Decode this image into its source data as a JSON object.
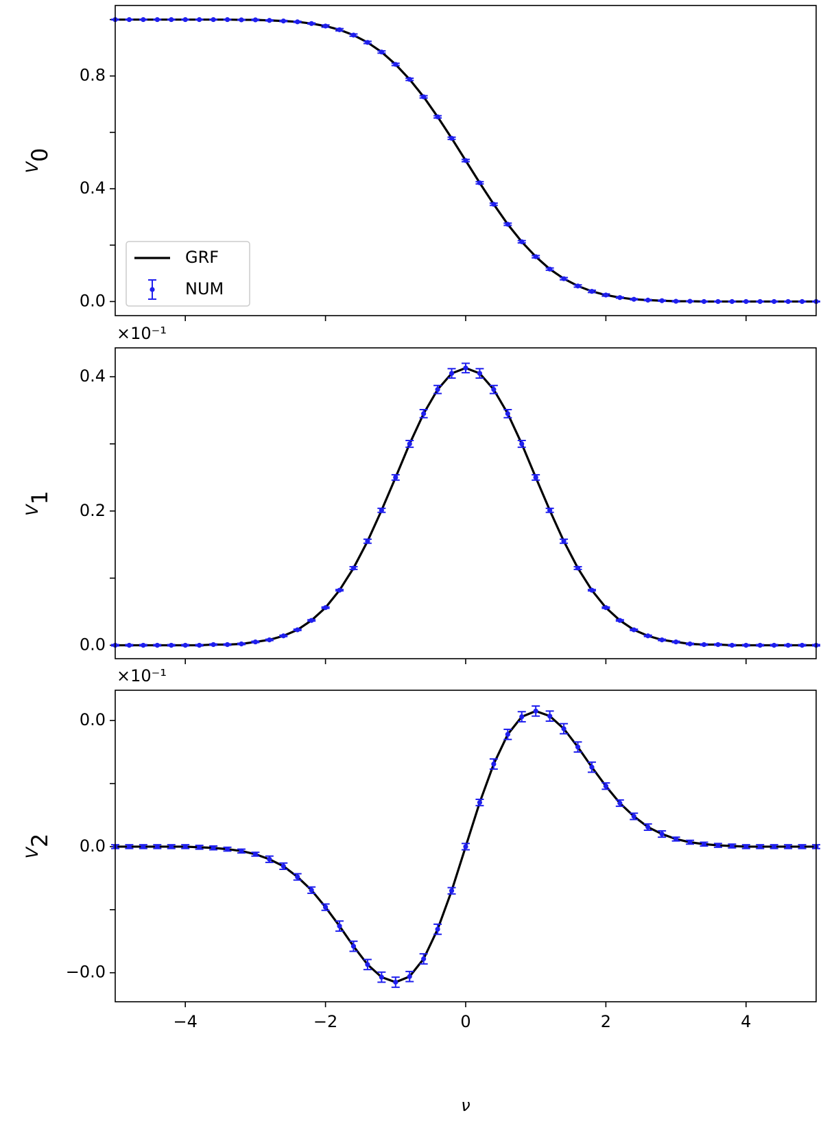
{
  "chart_data": [
    {
      "type": "errorbar",
      "ylabel": "V",
      "ylabel_sub": "0",
      "xlim": [
        -5,
        5
      ],
      "xticks": [
        -4,
        -2,
        0,
        2,
        4
      ],
      "xticklabels": false,
      "ylim": [
        -0.05,
        1.05
      ],
      "yticks": [
        {
          "value": 0,
          "label": "0.0"
        },
        0.4,
        0.8
      ],
      "yminor": [
        0.2,
        0.6,
        1.0
      ],
      "legend": "lower left",
      "x": [
        -5,
        -4.8,
        -4.6,
        -4.4,
        -4.2,
        -4,
        -3.8,
        -3.6,
        -3.4,
        -3.2,
        -3,
        -2.8,
        -2.6,
        -2.4,
        -2.2,
        -2,
        -1.8,
        -1.6,
        -1.4,
        -1.2,
        -1,
        -0.8,
        -0.6,
        -0.4,
        -0.2,
        0,
        0.2,
        0.4,
        0.6,
        0.8,
        1,
        1.2,
        1.4,
        1.6,
        1.8,
        2,
        2.2,
        2.4,
        2.6,
        2.8,
        3,
        3.2,
        3.4,
        3.6,
        3.8,
        4,
        4.2,
        4.4,
        4.6,
        4.8,
        5
      ],
      "series": [
        {
          "name": "GRF",
          "color": "#000000",
          "values": [
            1,
            1,
            1,
            1,
            1,
            1,
            1,
            1,
            1,
            0.999,
            0.999,
            0.997,
            0.995,
            0.992,
            0.986,
            0.977,
            0.964,
            0.945,
            0.919,
            0.885,
            0.841,
            0.788,
            0.726,
            0.655,
            0.579,
            0.5,
            0.421,
            0.345,
            0.274,
            0.212,
            0.159,
            0.115,
            0.081,
            0.055,
            0.036,
            0.023,
            0.014,
            0.008,
            0.005,
            0.003,
            0.001,
            0.001,
            0,
            0,
            0,
            0,
            0,
            0,
            0,
            0,
            0
          ]
        },
        {
          "name": "NUM",
          "color": "#1f1fee",
          "values": [
            1,
            1,
            1,
            1,
            1,
            1,
            1,
            1,
            1,
            0.999,
            0.999,
            0.997,
            0.995,
            0.992,
            0.986,
            0.977,
            0.964,
            0.945,
            0.919,
            0.885,
            0.841,
            0.788,
            0.726,
            0.655,
            0.579,
            0.5,
            0.421,
            0.345,
            0.274,
            0.212,
            0.159,
            0.115,
            0.081,
            0.055,
            0.036,
            0.023,
            0.014,
            0.008,
            0.005,
            0.003,
            0.001,
            0.001,
            0,
            0,
            0,
            0,
            0,
            0,
            0,
            0,
            0
          ],
          "errors": [
            0.001,
            0.001,
            0.001,
            0.001,
            0.001,
            0.001,
            0.001,
            0.001,
            0.001,
            0.001,
            0.002,
            0.002,
            0.002,
            0.002,
            0.002,
            0.004,
            0.004,
            0.004,
            0.004,
            0.004,
            0.004,
            0.004,
            0.004,
            0.004,
            0.004,
            0.004,
            0.004,
            0.004,
            0.004,
            0.004,
            0.004,
            0.004,
            0.004,
            0.004,
            0.004,
            0.004,
            0.002,
            0.002,
            0.002,
            0.002,
            0.002,
            0.001,
            0.001,
            0.001,
            0.001,
            0.001,
            0.001,
            0.001,
            0.001,
            0.001,
            0.001
          ]
        }
      ]
    },
    {
      "type": "errorbar",
      "ylabel": "V",
      "ylabel_sub": "1",
      "offset_text": "×10⁻¹",
      "xlim": [
        -5,
        5
      ],
      "xticks": [
        -4,
        -2,
        0,
        2,
        4
      ],
      "xticklabels": false,
      "ylim": [
        -0.02,
        0.443
      ],
      "yticks": [
        {
          "value": 0,
          "label": "0.0"
        },
        0.2,
        0.4
      ],
      "yminor": [
        0.1,
        0.3
      ],
      "x": [
        -5,
        -4.8,
        -4.6,
        -4.4,
        -4.2,
        -4,
        -3.8,
        -3.6,
        -3.4,
        -3.2,
        -3,
        -2.8,
        -2.6,
        -2.4,
        -2.2,
        -2,
        -1.8,
        -1.6,
        -1.4,
        -1.2,
        -1,
        -0.8,
        -0.6,
        -0.4,
        -0.2,
        0,
        0.2,
        0.4,
        0.6,
        0.8,
        1,
        1.2,
        1.4,
        1.6,
        1.8,
        2,
        2.2,
        2.4,
        2.6,
        2.8,
        3,
        3.2,
        3.4,
        3.6,
        3.8,
        4,
        4.2,
        4.4,
        4.6,
        4.8,
        5
      ],
      "series": [
        {
          "name": "GRF",
          "color": "#000000",
          "values": [
            0,
            0,
            0,
            0,
            0,
            0,
            0,
            0.001,
            0.001,
            0.002,
            0.005,
            0.008,
            0.014,
            0.023,
            0.037,
            0.056,
            0.082,
            0.115,
            0.155,
            0.201,
            0.25,
            0.3,
            0.345,
            0.381,
            0.405,
            0.413,
            0.405,
            0.381,
            0.345,
            0.3,
            0.25,
            0.201,
            0.155,
            0.115,
            0.082,
            0.056,
            0.037,
            0.023,
            0.014,
            0.008,
            0.005,
            0.002,
            0.001,
            0.001,
            0,
            0,
            0,
            0,
            0,
            0,
            0
          ]
        },
        {
          "name": "NUM",
          "color": "#1f1fee",
          "values": [
            0,
            0,
            0,
            0,
            0,
            0,
            0,
            0.001,
            0.001,
            0.002,
            0.005,
            0.008,
            0.014,
            0.023,
            0.037,
            0.056,
            0.082,
            0.115,
            0.155,
            0.201,
            0.25,
            0.3,
            0.345,
            0.381,
            0.405,
            0.413,
            0.405,
            0.381,
            0.345,
            0.3,
            0.25,
            0.201,
            0.155,
            0.115,
            0.082,
            0.056,
            0.037,
            0.023,
            0.014,
            0.008,
            0.005,
            0.002,
            0.001,
            0.001,
            0,
            0,
            0,
            0,
            0,
            0,
            0
          ],
          "errors": [
            0.001,
            0.001,
            0.001,
            0.001,
            0.001,
            0.001,
            0.001,
            0.001,
            0.001,
            0.001,
            0.001,
            0.001,
            0.001,
            0.001,
            0.001,
            0.001,
            0.001,
            0.002,
            0.003,
            0.003,
            0.004,
            0.005,
            0.006,
            0.006,
            0.007,
            0.007,
            0.007,
            0.006,
            0.006,
            0.005,
            0.004,
            0.003,
            0.003,
            0.002,
            0.001,
            0.001,
            0.001,
            0.001,
            0.001,
            0.001,
            0.001,
            0.001,
            0.001,
            0.001,
            0.001,
            0.001,
            0.001,
            0.001,
            0.001,
            0.001,
            0.001
          ]
        }
      ]
    },
    {
      "type": "errorbar",
      "ylabel": "V",
      "ylabel_sub": "2",
      "offset_text": "×10⁻¹",
      "xlabel": "ν",
      "xlim": [
        -5,
        5
      ],
      "xticks": [
        {
          "value": -4,
          "label": "−4"
        },
        {
          "value": -2,
          "label": "−2"
        },
        0,
        2,
        4
      ],
      "xticklabels": true,
      "ylim": [
        -0.0246,
        0.0248
      ],
      "yticks": [
        {
          "value": -0.02,
          "label": "−0.0"
        },
        {
          "value": 0,
          "label": "0.0"
        },
        {
          "value": 0.02,
          "label": "0.0"
        }
      ],
      "yminor": [
        -0.01,
        0.01
      ],
      "x": [
        -5,
        -4.8,
        -4.6,
        -4.4,
        -4.2,
        -4,
        -3.8,
        -3.6,
        -3.4,
        -3.2,
        -3,
        -2.8,
        -2.6,
        -2.4,
        -2.2,
        -2,
        -1.8,
        -1.6,
        -1.4,
        -1.2,
        -1,
        -0.8,
        -0.6,
        -0.4,
        -0.2,
        0,
        0.2,
        0.4,
        0.6,
        0.8,
        1,
        1.2,
        1.4,
        1.6,
        1.8,
        2,
        2.2,
        2.4,
        2.6,
        2.8,
        3,
        3.2,
        3.4,
        3.6,
        3.8,
        4,
        4.2,
        4.4,
        4.6,
        4.8,
        5
      ],
      "series": [
        {
          "name": "GRF",
          "color": "#000000",
          "values": [
            0,
            0,
            0,
            0,
            0,
            0,
            -0.0001,
            -0.0002,
            -0.0004,
            -0.0007,
            -0.0012,
            -0.002,
            -0.0031,
            -0.0048,
            -0.0069,
            -0.0096,
            -0.0126,
            -0.0158,
            -0.0187,
            -0.0207,
            -0.0215,
            -0.0206,
            -0.0178,
            -0.0131,
            -0.007,
            0,
            0.007,
            0.0131,
            0.0178,
            0.0206,
            0.0215,
            0.0207,
            0.0187,
            0.0158,
            0.0126,
            0.0096,
            0.0069,
            0.0048,
            0.0031,
            0.002,
            0.0012,
            0.0007,
            0.0004,
            0.0002,
            0.0001,
            0,
            0,
            0,
            0,
            0,
            0
          ]
        },
        {
          "name": "NUM",
          "color": "#1f1fee",
          "values": [
            0,
            0,
            0,
            0,
            0,
            0,
            -0.0001,
            -0.0002,
            -0.0004,
            -0.0007,
            -0.0012,
            -0.002,
            -0.0031,
            -0.0048,
            -0.0069,
            -0.0096,
            -0.0126,
            -0.0158,
            -0.0187,
            -0.0207,
            -0.0215,
            -0.0206,
            -0.0178,
            -0.0131,
            -0.007,
            0,
            0.007,
            0.0131,
            0.0178,
            0.0206,
            0.0215,
            0.0207,
            0.0187,
            0.0158,
            0.0126,
            0.0096,
            0.0069,
            0.0048,
            0.0031,
            0.002,
            0.0012,
            0.0007,
            0.0004,
            0.0002,
            0.0001,
            0,
            0,
            0,
            0,
            0,
            0
          ],
          "errors": [
            0.0003,
            0.0003,
            0.0003,
            0.0003,
            0.0003,
            0.0003,
            0.0003,
            0.0003,
            0.0003,
            0.0003,
            0.0003,
            0.0005,
            0.0005,
            0.0005,
            0.0005,
            0.0005,
            0.0008,
            0.0008,
            0.0008,
            0.0008,
            0.0008,
            0.0008,
            0.0008,
            0.0008,
            0.0005,
            0.0005,
            0.0005,
            0.0008,
            0.0008,
            0.0008,
            0.0008,
            0.0008,
            0.0008,
            0.0008,
            0.0008,
            0.0005,
            0.0005,
            0.0005,
            0.0005,
            0.0005,
            0.0003,
            0.0003,
            0.0003,
            0.0003,
            0.0003,
            0.0003,
            0.0003,
            0.0003,
            0.0003,
            0.0003,
            0.0003
          ]
        }
      ]
    }
  ]
}
